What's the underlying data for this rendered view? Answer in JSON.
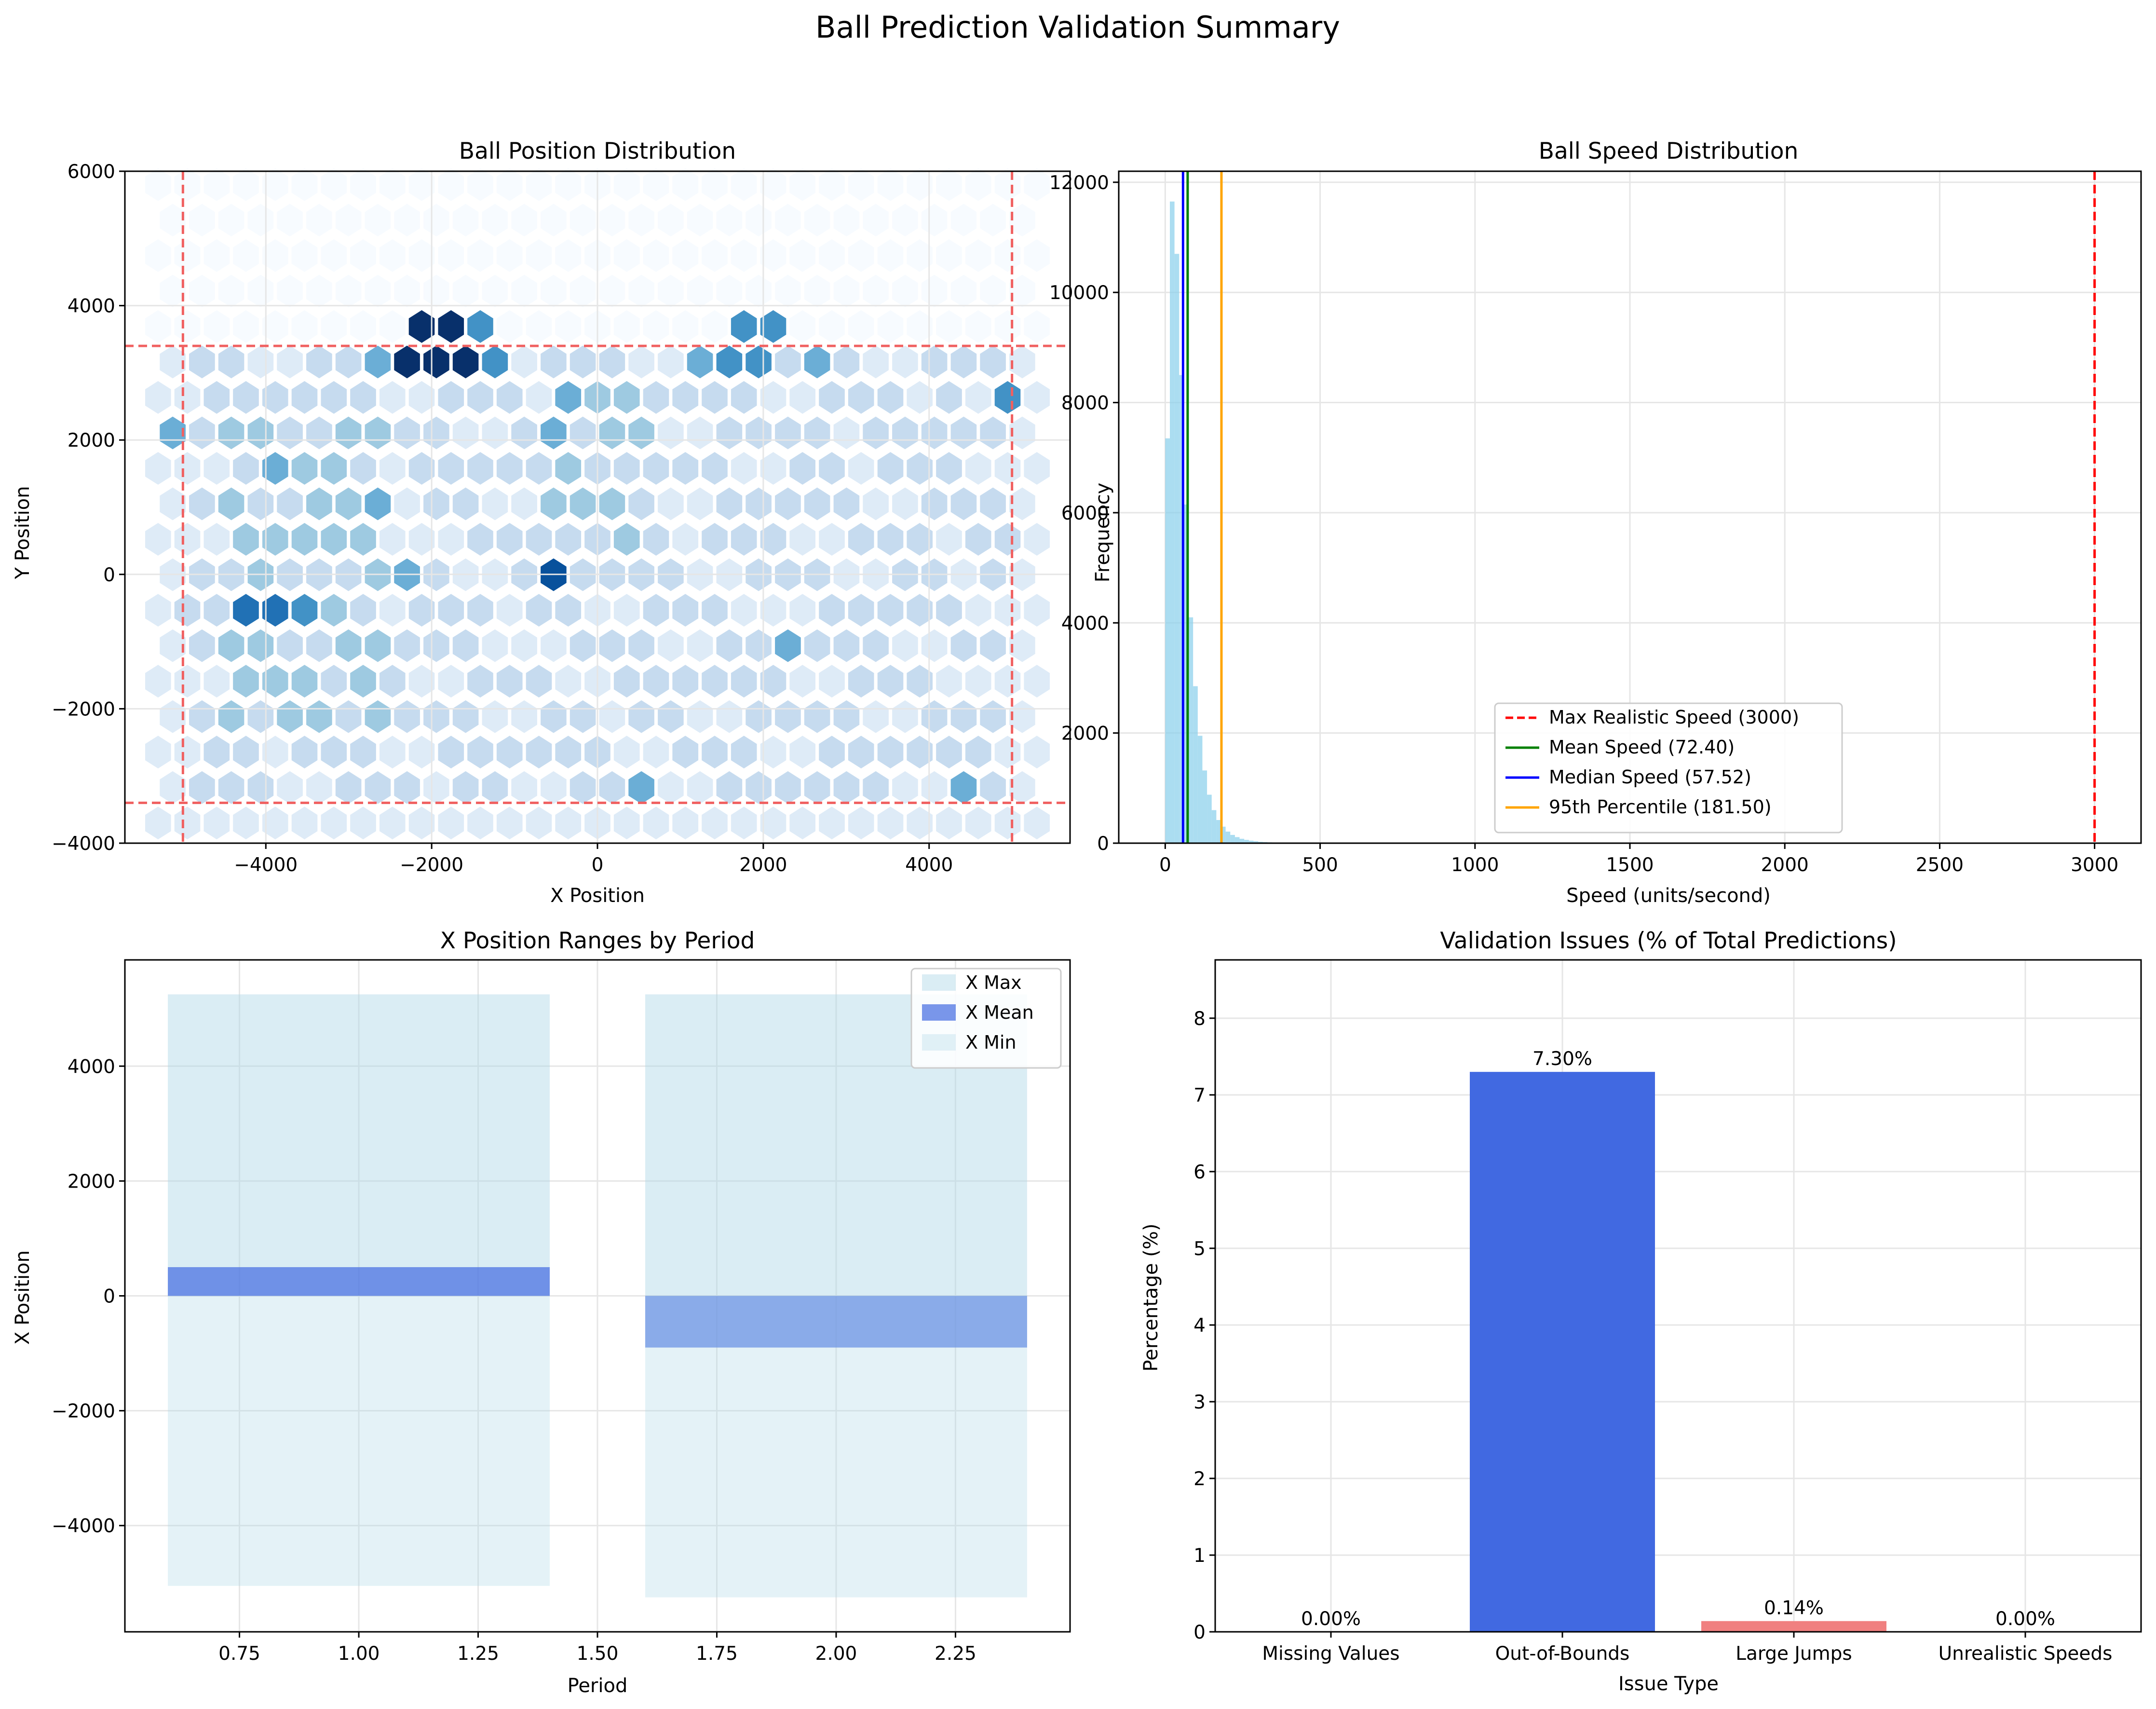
{
  "suptitle": "Ball Prediction Validation Summary",
  "colors": {
    "hex_scale": [
      "#f7fbff",
      "#deebf7",
      "#c6dbef",
      "#9ecae1",
      "#6baed6",
      "#4292c6",
      "#2171b5",
      "#08519c",
      "#08306b"
    ],
    "bound_line": "#f06060",
    "hist_bar": "#87ceeb",
    "max_speed": "#ff0000",
    "mean_speed": "#008000",
    "median_speed": "#0000ff",
    "p95": "#ffa500",
    "x_max": "#add8e6",
    "x_mean": "#4169e1",
    "x_min": "#add8e6",
    "issue_oob": "#4169e1",
    "issue_jumps": "#f08080",
    "issue_default": "#4169e1",
    "grid": "#e6e6e6"
  },
  "chart_data": [
    {
      "id": "position",
      "type": "heatmap",
      "title": "Ball Position Distribution",
      "xlabel": "X Position",
      "ylabel": "Y Position",
      "xlim": [
        -5700,
        5700
      ],
      "ylim": [
        -4000,
        6000
      ],
      "xticks": [
        -4000,
        -2000,
        0,
        2000,
        4000
      ],
      "yticks": [
        -4000,
        -2000,
        0,
        2000,
        4000,
        6000
      ],
      "grid": true,
      "boundary_x": [
        -5000,
        5000
      ],
      "boundary_y": [
        -3400,
        3400
      ],
      "hexbin": {
        "x_range": [
          -5300,
          5300
        ],
        "y_range": [
          -3700,
          5800
        ],
        "nx": 30,
        "ny": 18,
        "hotspots": [
          {
            "x": -2150,
            "y": 3400,
            "level": 8
          },
          {
            "x": -1750,
            "y": 3400,
            "level": 8
          },
          {
            "x": -550,
            "y": -80,
            "level": 7
          },
          {
            "x": -4050,
            "y": -600,
            "level": 6
          },
          {
            "x": -3400,
            "y": -350,
            "level": 5
          },
          {
            "x": -1400,
            "y": 3400,
            "level": 5
          },
          {
            "x": 4950,
            "y": 2650,
            "level": 5
          },
          {
            "x": 1700,
            "y": 3400,
            "level": 5
          },
          {
            "x": 2100,
            "y": 3400,
            "level": 5
          },
          {
            "x": 2750,
            "y": 3200,
            "level": 4
          },
          {
            "x": -450,
            "y": 2400,
            "level": 4
          },
          {
            "x": -2700,
            "y": 3200,
            "level": 4
          },
          {
            "x": 500,
            "y": -3300,
            "level": 4
          },
          {
            "x": 4350,
            "y": -3300,
            "level": 4
          },
          {
            "x": -5100,
            "y": 2100,
            "level": 4
          },
          {
            "x": -3950,
            "y": 1750,
            "level": 4
          },
          {
            "x": -2750,
            "y": 1000,
            "level": 4
          },
          {
            "x": 1250,
            "y": 3200,
            "level": 4
          },
          {
            "x": -2250,
            "y": 0,
            "level": 4
          },
          {
            "x": 2400,
            "y": -900,
            "level": 4
          }
        ]
      }
    },
    {
      "id": "speed",
      "type": "bar",
      "title": "Ball Speed Distribution",
      "xlabel": "Speed (units/second)",
      "ylabel": "Frequency",
      "xlim": [
        -150,
        3150
      ],
      "ylim": [
        0,
        12200
      ],
      "xticks": [
        0,
        500,
        1000,
        1500,
        2000,
        2500,
        3000
      ],
      "yticks": [
        0,
        2000,
        4000,
        6000,
        8000,
        10000,
        12000
      ],
      "grid": true,
      "bin_width": 15,
      "bin_start": 0,
      "frequencies": [
        7350,
        11650,
        10700,
        8500,
        6150,
        4100,
        2850,
        1950,
        1320,
        880,
        600,
        420,
        300,
        210,
        150,
        110,
        80,
        60,
        45,
        35,
        25,
        20,
        15,
        12,
        10,
        8,
        6,
        5
      ],
      "reference_lines": [
        {
          "label": "Max Realistic Speed (3000)",
          "value": 3000,
          "style": "dashed",
          "color_key": "max_speed"
        },
        {
          "label": "Mean Speed (72.40)",
          "value": 72.4,
          "style": "solid",
          "color_key": "mean_speed"
        },
        {
          "label": "Median Speed (57.52)",
          "value": 57.52,
          "style": "solid",
          "color_key": "median_speed"
        },
        {
          "label": "95th Percentile (181.50)",
          "value": 181.5,
          "style": "solid",
          "color_key": "p95"
        }
      ],
      "legend_position": "lower center"
    },
    {
      "id": "period",
      "type": "bar",
      "title": "X Position Ranges by Period",
      "xlabel": "Period",
      "ylabel": "X Position",
      "xlim": [
        0.51,
        2.49
      ],
      "ylim": [
        -5850,
        5850
      ],
      "xticks": [
        "0.75",
        "1.00",
        "1.25",
        "1.50",
        "1.75",
        "2.00",
        "2.25"
      ],
      "yticks": [
        -4000,
        -2000,
        0,
        2000,
        4000
      ],
      "grid": true,
      "bar_width": 0.8,
      "categories": [
        1,
        2
      ],
      "series": [
        {
          "name": "X Max",
          "values": [
            5250,
            5250
          ],
          "color_key": "x_max",
          "alpha": 0.45
        },
        {
          "name": "X Mean",
          "values": [
            500,
            -900
          ],
          "color_key": "x_mean",
          "alpha": 0.7
        },
        {
          "name": "X Min",
          "values": [
            -5050,
            -5250
          ],
          "color_key": "x_min",
          "alpha": 0.33
        }
      ],
      "legend_position": "upper right"
    },
    {
      "id": "issues",
      "type": "bar",
      "title": "Validation Issues (% of Total Predictions)",
      "xlabel": "Issue Type",
      "ylabel": "Percentage (%)",
      "ylim": [
        0,
        8.76
      ],
      "yticks": [
        0,
        1,
        2,
        3,
        4,
        5,
        6,
        7,
        8
      ],
      "grid": true,
      "categories": [
        "Missing Values",
        "Out-of-Bounds",
        "Large Jumps",
        "Unrealistic Speeds"
      ],
      "values": [
        0.0,
        7.3,
        0.14,
        0.0
      ],
      "value_labels": [
        "0.00%",
        "7.30%",
        "0.14%",
        "0.00%"
      ],
      "color_keys": [
        "issue_default",
        "issue_oob",
        "issue_jumps",
        "issue_default"
      ]
    }
  ]
}
